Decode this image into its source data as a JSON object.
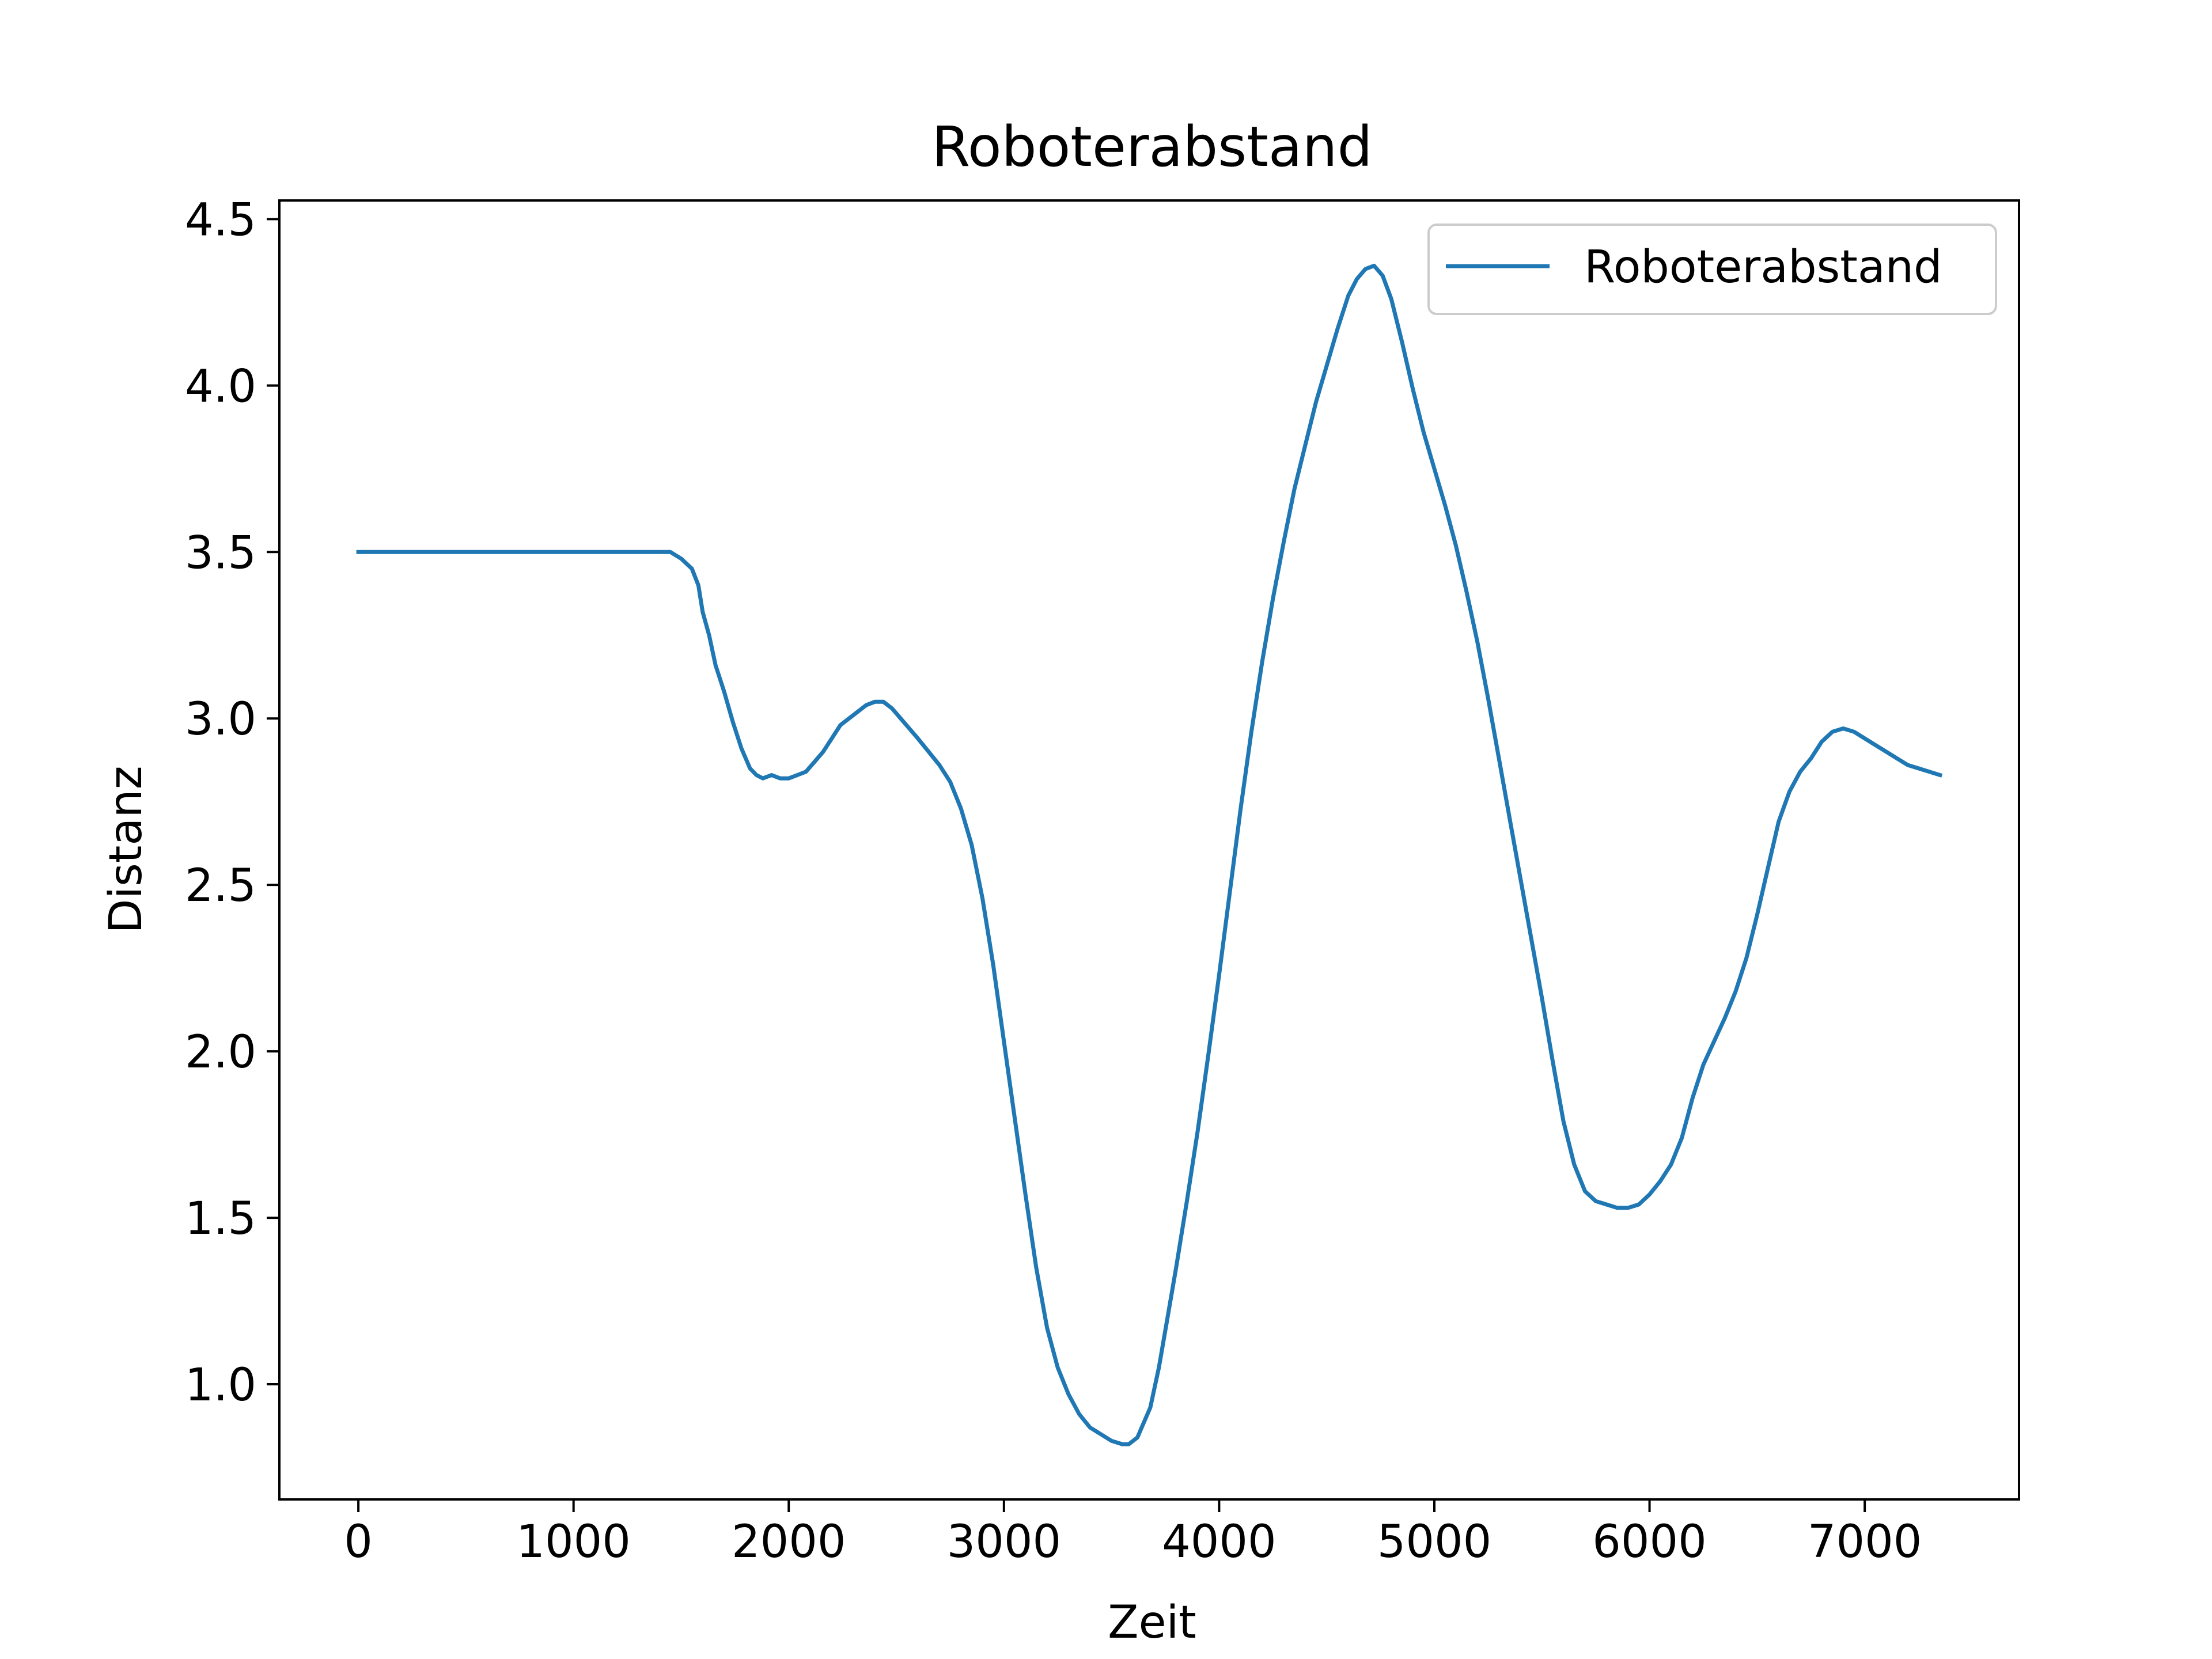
{
  "chart_data": {
    "type": "line",
    "title": "Roboterabstand",
    "xlabel": "Zeit",
    "ylabel": "Distanz",
    "xlim": [
      -367,
      7717
    ],
    "ylim": [
      0.654,
      4.556
    ],
    "xticks": [
      0,
      1000,
      2000,
      3000,
      4000,
      5000,
      6000,
      7000
    ],
    "xtick_labels": [
      "0",
      "1000",
      "2000",
      "3000",
      "4000",
      "5000",
      "6000",
      "7000"
    ],
    "yticks": [
      1.0,
      1.5,
      2.0,
      2.5,
      3.0,
      3.5,
      4.0,
      4.5
    ],
    "ytick_labels": [
      "1.0",
      "1.5",
      "2.0",
      "2.5",
      "3.0",
      "3.5",
      "4.0",
      "4.5"
    ],
    "grid": false,
    "legend_position": "top-right",
    "series_color": "#1f77b4",
    "series": [
      {
        "name": "Roboterabstand",
        "points": [
          [
            0,
            3.5
          ],
          [
            200,
            3.5
          ],
          [
            400,
            3.5
          ],
          [
            600,
            3.5
          ],
          [
            800,
            3.5
          ],
          [
            1000,
            3.5
          ],
          [
            1200,
            3.5
          ],
          [
            1400,
            3.5
          ],
          [
            1450,
            3.5
          ],
          [
            1500,
            3.48
          ],
          [
            1550,
            3.45
          ],
          [
            1580,
            3.4
          ],
          [
            1600,
            3.32
          ],
          [
            1630,
            3.25
          ],
          [
            1660,
            3.16
          ],
          [
            1700,
            3.08
          ],
          [
            1740,
            2.99
          ],
          [
            1780,
            2.91
          ],
          [
            1820,
            2.85
          ],
          [
            1850,
            2.83
          ],
          [
            1880,
            2.82
          ],
          [
            1920,
            2.83
          ],
          [
            1960,
            2.82
          ],
          [
            2000,
            2.82
          ],
          [
            2040,
            2.83
          ],
          [
            2080,
            2.84
          ],
          [
            2120,
            2.87
          ],
          [
            2160,
            2.9
          ],
          [
            2200,
            2.94
          ],
          [
            2240,
            2.98
          ],
          [
            2280,
            3.0
          ],
          [
            2320,
            3.02
          ],
          [
            2360,
            3.04
          ],
          [
            2400,
            3.05
          ],
          [
            2440,
            3.05
          ],
          [
            2480,
            3.03
          ],
          [
            2520,
            3.0
          ],
          [
            2560,
            2.97
          ],
          [
            2600,
            2.94
          ],
          [
            2650,
            2.9
          ],
          [
            2700,
            2.86
          ],
          [
            2750,
            2.81
          ],
          [
            2800,
            2.73
          ],
          [
            2850,
            2.62
          ],
          [
            2900,
            2.46
          ],
          [
            2950,
            2.26
          ],
          [
            3000,
            2.03
          ],
          [
            3050,
            1.8
          ],
          [
            3100,
            1.57
          ],
          [
            3150,
            1.35
          ],
          [
            3200,
            1.17
          ],
          [
            3250,
            1.05
          ],
          [
            3300,
            0.97
          ],
          [
            3350,
            0.91
          ],
          [
            3400,
            0.87
          ],
          [
            3450,
            0.85
          ],
          [
            3500,
            0.83
          ],
          [
            3550,
            0.82
          ],
          [
            3580,
            0.82
          ],
          [
            3620,
            0.84
          ],
          [
            3680,
            0.93
          ],
          [
            3720,
            1.05
          ],
          [
            3760,
            1.2
          ],
          [
            3800,
            1.35
          ],
          [
            3850,
            1.55
          ],
          [
            3900,
            1.76
          ],
          [
            3950,
            1.99
          ],
          [
            4000,
            2.23
          ],
          [
            4050,
            2.48
          ],
          [
            4100,
            2.73
          ],
          [
            4150,
            2.96
          ],
          [
            4200,
            3.17
          ],
          [
            4250,
            3.36
          ],
          [
            4300,
            3.53
          ],
          [
            4350,
            3.69
          ],
          [
            4400,
            3.82
          ],
          [
            4450,
            3.95
          ],
          [
            4500,
            4.06
          ],
          [
            4550,
            4.17
          ],
          [
            4600,
            4.27
          ],
          [
            4640,
            4.32
          ],
          [
            4680,
            4.35
          ],
          [
            4720,
            4.36
          ],
          [
            4760,
            4.33
          ],
          [
            4800,
            4.26
          ],
          [
            4850,
            4.13
          ],
          [
            4900,
            3.99
          ],
          [
            4950,
            3.86
          ],
          [
            5000,
            3.75
          ],
          [
            5050,
            3.64
          ],
          [
            5100,
            3.52
          ],
          [
            5150,
            3.38
          ],
          [
            5200,
            3.23
          ],
          [
            5250,
            3.06
          ],
          [
            5300,
            2.88
          ],
          [
            5350,
            2.7
          ],
          [
            5400,
            2.52
          ],
          [
            5450,
            2.34
          ],
          [
            5500,
            2.16
          ],
          [
            5550,
            1.97
          ],
          [
            5600,
            1.79
          ],
          [
            5650,
            1.66
          ],
          [
            5700,
            1.58
          ],
          [
            5750,
            1.55
          ],
          [
            5800,
            1.54
          ],
          [
            5850,
            1.53
          ],
          [
            5900,
            1.53
          ],
          [
            5950,
            1.54
          ],
          [
            6000,
            1.57
          ],
          [
            6050,
            1.61
          ],
          [
            6100,
            1.66
          ],
          [
            6150,
            1.74
          ],
          [
            6200,
            1.86
          ],
          [
            6250,
            1.96
          ],
          [
            6300,
            2.03
          ],
          [
            6350,
            2.1
          ],
          [
            6400,
            2.18
          ],
          [
            6450,
            2.28
          ],
          [
            6500,
            2.41
          ],
          [
            6550,
            2.55
          ],
          [
            6600,
            2.69
          ],
          [
            6650,
            2.78
          ],
          [
            6700,
            2.84
          ],
          [
            6750,
            2.88
          ],
          [
            6800,
            2.93
          ],
          [
            6850,
            2.96
          ],
          [
            6900,
            2.97
          ],
          [
            6950,
            2.96
          ],
          [
            7000,
            2.94
          ],
          [
            7050,
            2.92
          ],
          [
            7100,
            2.9
          ],
          [
            7150,
            2.88
          ],
          [
            7200,
            2.86
          ],
          [
            7250,
            2.85
          ],
          [
            7300,
            2.84
          ],
          [
            7350,
            2.83
          ]
        ]
      }
    ]
  }
}
